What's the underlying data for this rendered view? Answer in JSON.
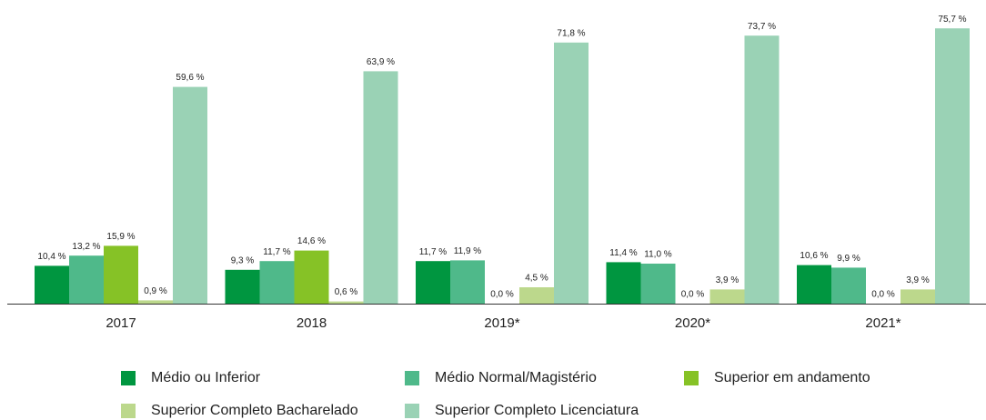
{
  "chart_data": {
    "type": "bar",
    "categories": [
      "2017",
      "2018",
      "2019*",
      "2020*",
      "2021*"
    ],
    "series": [
      {
        "name": "Médio ou Inferior",
        "color": "#009640",
        "values": [
          10.4,
          9.3,
          11.7,
          11.4,
          10.6
        ],
        "value_labels": [
          "10,4 %",
          "9,3 %",
          "11,7 %",
          "11,4 %",
          "10,6 %"
        ]
      },
      {
        "name": "Médio Normal/Magistério",
        "color": "#4fb98a",
        "values": [
          13.2,
          11.7,
          11.9,
          11.0,
          9.9
        ],
        "value_labels": [
          "13,2 %",
          "11,7 %",
          "11,9 %",
          "11,0 %",
          "9,9 %"
        ]
      },
      {
        "name": "Superior em andamento",
        "color": "#86c226",
        "values": [
          15.9,
          14.6,
          0.0,
          0.0,
          0.0
        ],
        "value_labels": [
          "15,9 %",
          "14,6 %",
          "0,0 %",
          "0,0 %",
          "0,0 %"
        ]
      },
      {
        "name": "Superior Completo Bacharelado",
        "color": "#bcd88c",
        "values": [
          0.9,
          0.6,
          4.5,
          3.9,
          3.9
        ],
        "value_labels": [
          "0,9 %",
          "0,6 %",
          "4,5 %",
          "3,9 %",
          "3,9 %"
        ]
      },
      {
        "name": "Superior Completo Licenciatura",
        "color": "#9ad2b5",
        "values": [
          59.6,
          63.9,
          71.8,
          73.7,
          75.7
        ],
        "value_labels": [
          "59,6 %",
          "63,9 %",
          "71,8 %",
          "73,7 %",
          "75,7 %"
        ]
      }
    ]
  }
}
